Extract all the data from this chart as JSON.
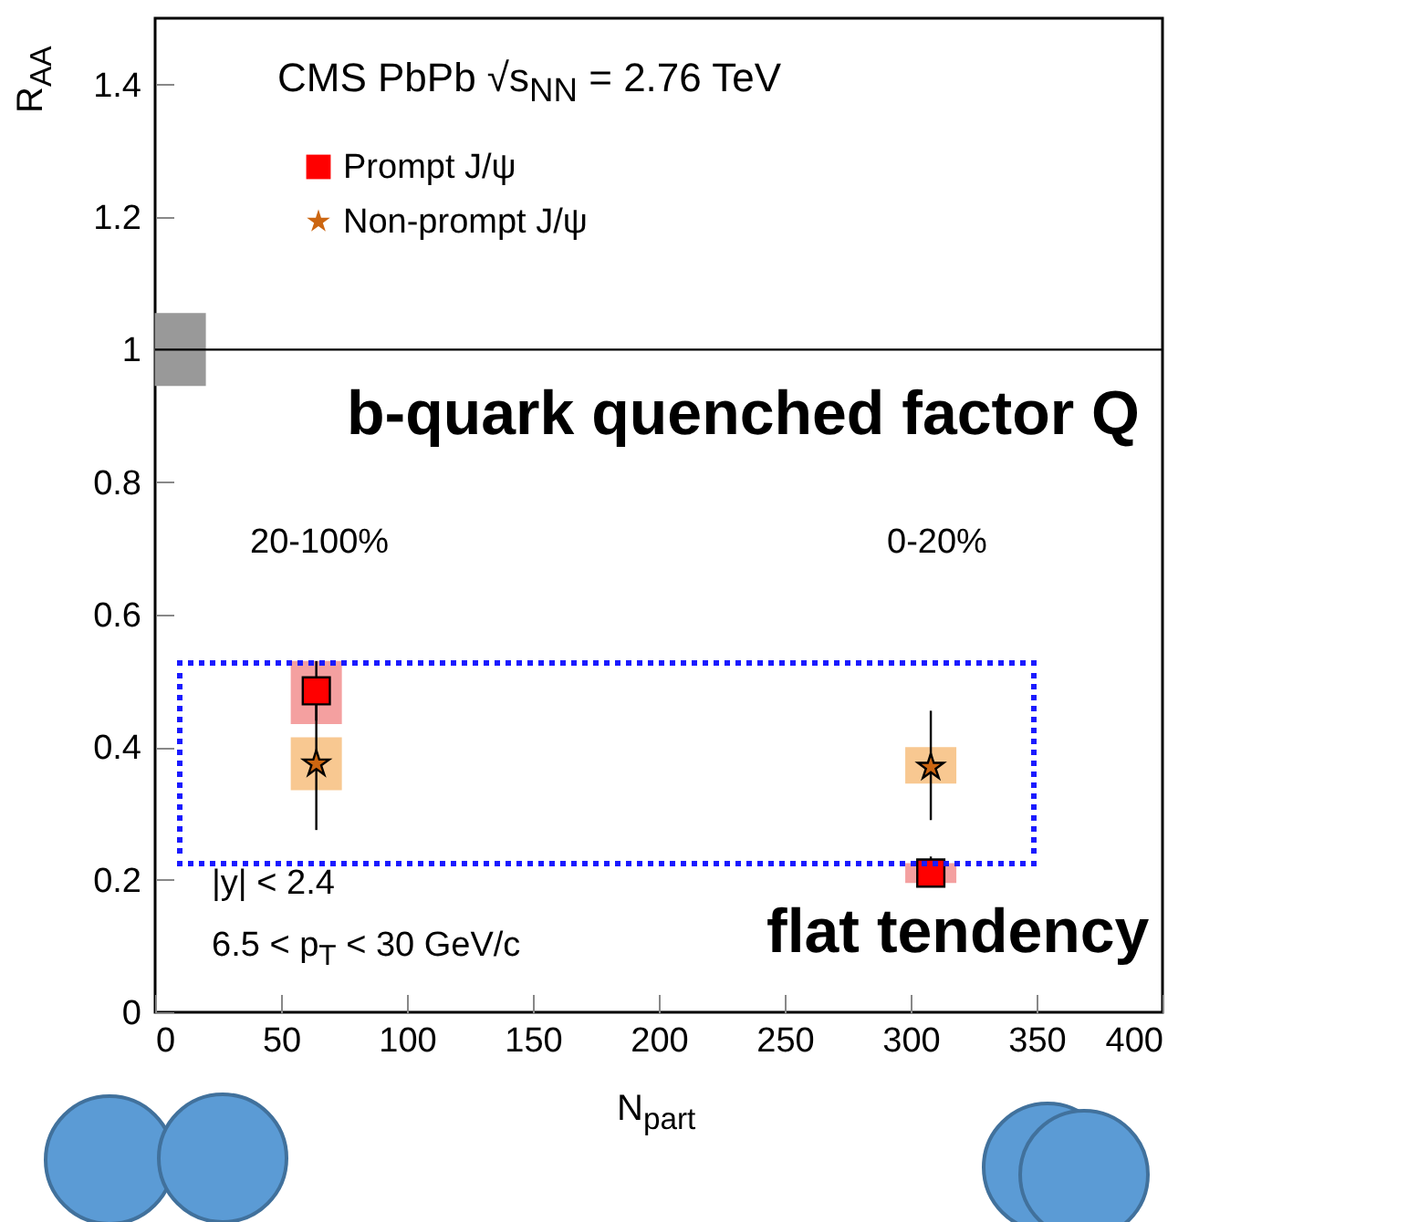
{
  "chart_data": {
    "type": "scatter",
    "title": "CMS PbPb  √s$_{NN}$ = 2.76 TeV",
    "xlabel": "N$_{part}$",
    "ylabel": "R$_{AA}$",
    "xlim": [
      0,
      400
    ],
    "xticks": [
      0,
      50,
      100,
      150,
      200,
      250,
      300,
      350,
      400
    ],
    "ylim": [
      0,
      1.5
    ],
    "yticks": [
      0,
      0.2,
      0.4,
      0.6,
      0.8,
      1,
      1.2,
      1.4
    ],
    "legend": "top left",
    "grid": false,
    "ref_lines": [
      {
        "axis": "y",
        "value": 1,
        "color": "#000000"
      }
    ],
    "annotations": [
      "b-quark quenched factor Q",
      "flat tendency",
      "20-100%",
      "0-20%",
      "|y| < 2.4",
      "6.5 < p$_{T}$ < 30 GeV/c"
    ],
    "series": [
      {
        "type": "bar",
        "color": "#999999",
        "x": [
          10
        ],
        "base": [
          0.945
        ],
        "values": [
          0.11
        ]
      },
      {
        "type": "bar",
        "color": "#f4a0a0",
        "x": [
          64,
          308
        ],
        "base": [
          0.435,
          0.195
        ],
        "values": [
          0.095,
          0.03
        ]
      },
      {
        "type": "bar",
        "color": "#f8c891",
        "x": [
          64,
          308
        ],
        "base": [
          0.335,
          0.345
        ],
        "values": [
          0.08,
          0.055
        ]
      },
      {
        "name": "Prompt J/ψ",
        "marker": "square",
        "color": "#ff0000",
        "x": [
          64,
          308
        ],
        "values": [
          0.485,
          0.21
        ],
        "errors": [
          [
            0.44,
            0.53
          ],
          [
            0.195,
            0.235
          ]
        ]
      },
      {
        "name": "Non-prompt J/ψ",
        "marker": "star",
        "color": "#cc6611",
        "x": [
          64,
          308
        ],
        "values": [
          0.375,
          0.37
        ],
        "errors": [
          [
            0.275,
            0.47
          ],
          [
            0.29,
            0.455
          ]
        ]
      }
    ]
  }
}
